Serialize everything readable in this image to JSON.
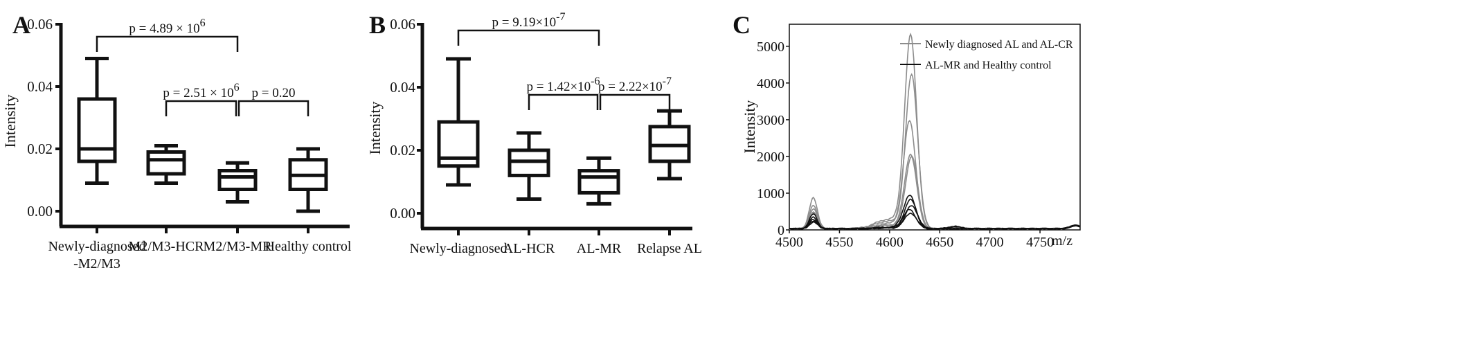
{
  "chart_data": [
    {
      "panel": "A",
      "type": "box",
      "ylabel": "Intensity",
      "ylim": [
        0,
        0.06
      ],
      "yticks": [
        "0.00",
        "0.02",
        "0.04",
        "0.06"
      ],
      "categories": [
        [
          "Newly-diagnosed",
          "-M2/M3"
        ],
        [
          "M2/M3-HCR"
        ],
        [
          "M2/M3-MR"
        ],
        [
          "Healthy control"
        ]
      ],
      "boxes": [
        {
          "min": 0.009,
          "q1": 0.016,
          "median": 0.02,
          "q3": 0.036,
          "max": 0.049
        },
        {
          "min": 0.009,
          "q1": 0.012,
          "median": 0.0165,
          "q3": 0.019,
          "max": 0.021
        },
        {
          "min": 0.003,
          "q1": 0.007,
          "median": 0.011,
          "q3": 0.013,
          "max": 0.0155
        },
        {
          "min": 0.0,
          "q1": 0.007,
          "median": 0.0115,
          "q3": 0.0165,
          "max": 0.02
        }
      ],
      "brackets": [
        {
          "from": 0,
          "to": 2,
          "label": "p = 4.89 × 10",
          "sup": "6"
        },
        {
          "from": 1,
          "to": 2,
          "label": "p = 2.51 × 10",
          "sup": "6"
        },
        {
          "from": 2,
          "to": 3,
          "label": "p = 0.20",
          "sup": ""
        }
      ]
    },
    {
      "panel": "B",
      "type": "box",
      "ylabel": "Intensity",
      "ylim": [
        0,
        0.06
      ],
      "yticks": [
        "0.00",
        "0.02",
        "0.04",
        "0.06"
      ],
      "categories": [
        [
          "Newly-diagnosed"
        ],
        [
          "AL-HCR"
        ],
        [
          "AL-MR"
        ],
        [
          "Relapse AL"
        ]
      ],
      "boxes": [
        {
          "min": 0.009,
          "q1": 0.015,
          "median": 0.0175,
          "q3": 0.029,
          "max": 0.049
        },
        {
          "min": 0.0045,
          "q1": 0.012,
          "median": 0.0165,
          "q3": 0.02,
          "max": 0.0255
        },
        {
          "min": 0.003,
          "q1": 0.0065,
          "median": 0.0115,
          "q3": 0.0135,
          "max": 0.0175
        },
        {
          "min": 0.011,
          "q1": 0.0165,
          "median": 0.0215,
          "q3": 0.0275,
          "max": 0.0325
        }
      ],
      "brackets": [
        {
          "from": 0,
          "to": 2,
          "label": "p = 9.19×10",
          "sup": "-7"
        },
        {
          "from": 1,
          "to": 2,
          "label": "p = 1.42×10",
          "sup": "-6"
        },
        {
          "from": 2,
          "to": 3,
          "label": "p = 2.22×10",
          "sup": "-7"
        }
      ]
    },
    {
      "panel": "C",
      "type": "line",
      "xlabel": "m/z",
      "ylabel": "Intensity",
      "xlim": [
        4500,
        4790
      ],
      "ylim": [
        0,
        5600
      ],
      "xticks": [
        "4500",
        "4550",
        "4600",
        "4650",
        "4700",
        "4750"
      ],
      "yticks": [
        "0",
        "1000",
        "2000",
        "3000",
        "4000",
        "5000"
      ],
      "legend_position": "top-right",
      "legend": [
        {
          "label": "Newly diagnosed AL and AL-CR",
          "color": "#8c8c8c"
        },
        {
          "label": "AL-MR and Healthy control",
          "color": "#111111"
        }
      ],
      "peak_mz": 4620,
      "groups": [
        {
          "group": 0,
          "color": "#8c8c8c",
          "peaks": [
            5200,
            4150,
            2900,
            2000,
            1950
          ],
          "side_peaks": [
            850,
            650,
            550,
            450,
            420
          ]
        },
        {
          "group": 1,
          "color": "#111111",
          "peaks": [
            900,
            780,
            620,
            520,
            420
          ],
          "side_peaks": [
            400,
            320,
            260,
            220,
            180
          ]
        }
      ]
    }
  ]
}
